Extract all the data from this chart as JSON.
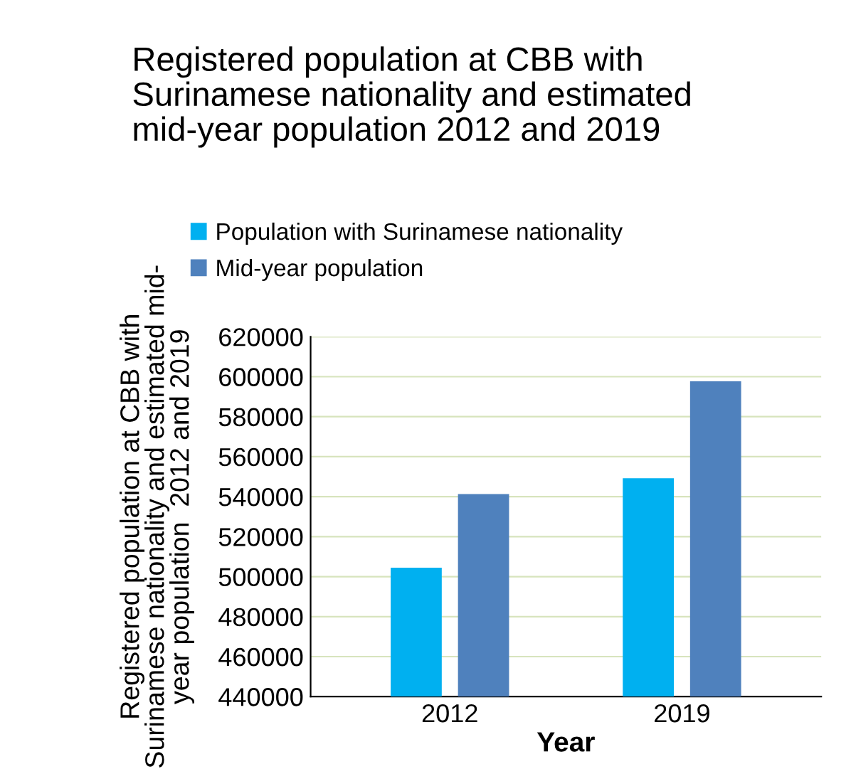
{
  "chart_data": {
    "type": "bar",
    "title": "Registered population at CBB with\nSurinamese nationality and estimated\nmid-year population 2012 and 2019",
    "xlabel": "Year",
    "ylabel": "Registered population at CBB with\nSurinamese nationality and estimated mid-\nyear population  2012 and 2019",
    "categories": [
      "2012",
      "2019"
    ],
    "series": [
      {
        "name": "Population with Surinamese nationality",
        "color": "#00b0f0",
        "values": [
          504500,
          549200
        ]
      },
      {
        "name": "Mid-year population",
        "color": "#4f81bd",
        "values": [
          541300,
          597700
        ]
      }
    ],
    "ylim": [
      440000,
      620000
    ],
    "yticks": [
      440000,
      460000,
      480000,
      500000,
      520000,
      540000,
      560000,
      580000,
      600000,
      620000
    ],
    "grid": "y",
    "legend": "top"
  }
}
